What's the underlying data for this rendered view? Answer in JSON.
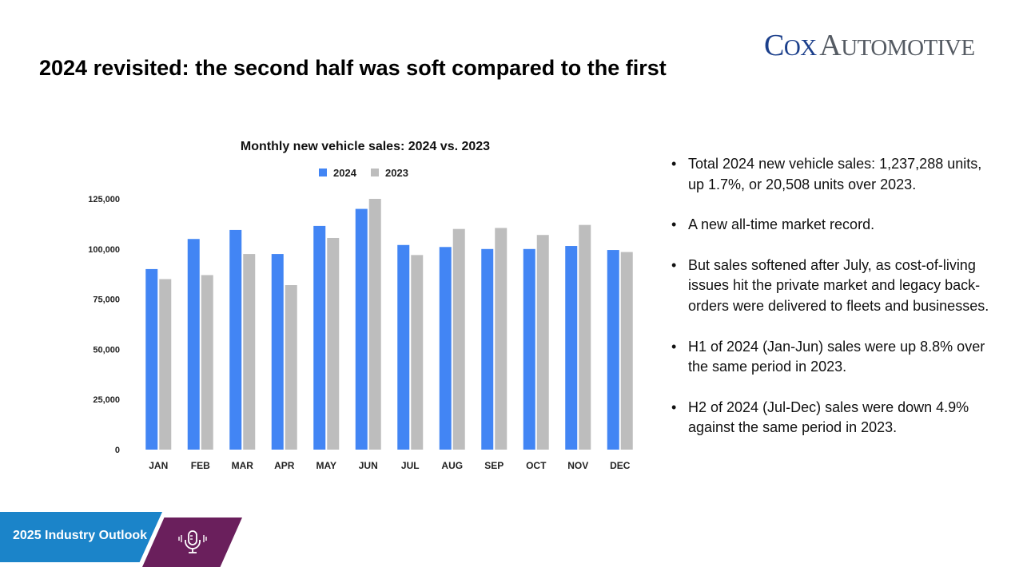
{
  "slide": {
    "title": "2024 revisited: the second half was soft compared to the first"
  },
  "logo": {
    "cox": "Cox",
    "automotive": "Automotive"
  },
  "colors": {
    "series_2024": "#4285f4",
    "series_2023": "#bdbdbd",
    "footer_blue": "#1b84c9",
    "footer_purple": "#6a1f5c",
    "logo_blue": "#1b3f8b",
    "logo_gray": "#555b63"
  },
  "chart_data": {
    "type": "bar",
    "title": "Monthly new vehicle sales: 2024 vs. 2023",
    "xlabel": "",
    "ylabel": "",
    "categories": [
      "JAN",
      "FEB",
      "MAR",
      "APR",
      "MAY",
      "JUN",
      "JUL",
      "AUG",
      "SEP",
      "OCT",
      "NOV",
      "DEC"
    ],
    "series": [
      {
        "name": "2024",
        "values": [
          90000,
          105000,
          109500,
          97500,
          111500,
          120000,
          102000,
          101000,
          100000,
          100000,
          101500,
          99500
        ]
      },
      {
        "name": "2023",
        "values": [
          85000,
          87000,
          97500,
          82000,
          105500,
          125000,
          97000,
          110000,
          110500,
          107000,
          112000,
          98500
        ]
      }
    ],
    "ylim": [
      0,
      125000
    ],
    "yticks": [
      0,
      25000,
      50000,
      75000,
      100000,
      125000
    ],
    "ytick_labels": [
      "0",
      "25,000",
      "50,000",
      "75,000",
      "100,000",
      "125,000"
    ],
    "grid": false,
    "legend": "top-center"
  },
  "bullets": [
    "Total 2024 new vehicle sales: 1,237,288 units, up 1.7%, or 20,508 units over 2023.",
    "A new all-time market record.",
    "But sales softened after July, as cost-of-living issues hit the private market and legacy back-orders were delivered to fleets and businesses.",
    "H1 of 2024 (Jan-Jun) sales were up 8.8% over the same period in 2023.",
    "H2 of 2024 (Jul-Dec) sales were down 4.9% against the same period in 2023."
  ],
  "bullet_symbol": "•",
  "footer": {
    "label": "2025 Industry Outlook",
    "icon": "podcast-microphone-icon"
  }
}
